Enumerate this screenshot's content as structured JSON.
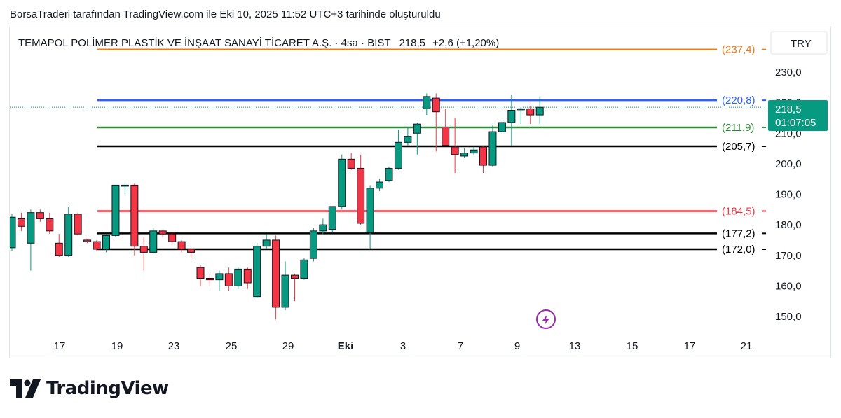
{
  "caption": "BorsaTraderi tarafından TradingView.com ile Eki 10, 2025 11:52 UTC+3 tarihinde oluşturuldu",
  "brand": "TradingView",
  "colors": {
    "up": "#089981",
    "down": "#f23645",
    "price_label_bg": "#089981",
    "lightning": "#9c27b0"
  },
  "chart_data": {
    "type": "candlestick",
    "symbol_line": "TEMAPOL POLİMER PLASTİK VE İNŞAAT SANAYİ TİCARET A.Ş. · 4sa · BIST",
    "last_price": "218,5",
    "change": "+2,6 (+1,20%)",
    "currency": "TRY",
    "countdown": "01:07:05",
    "y_range": [
      146,
      242
    ],
    "y_ticks": [
      "230,0",
      "220,0",
      "210,0",
      "200,0",
      "190,0",
      "180,0",
      "170,0",
      "160,0",
      "150,0"
    ],
    "y_tick_values": [
      230,
      220,
      210,
      200,
      190,
      180,
      170,
      160,
      150
    ],
    "x_labels": [
      "17",
      "19",
      "23",
      "25",
      "29",
      "Eki",
      "3",
      "7",
      "9",
      "13",
      "15",
      "17",
      "21"
    ],
    "levels": [
      {
        "value": 237.4,
        "label": "(237,4)",
        "color": "#ef7b18"
      },
      {
        "value": 220.8,
        "label": "(220,8)",
        "color": "#2962ff"
      },
      {
        "value": 211.9,
        "label": "(211,9)",
        "color": "#2e8b3a"
      },
      {
        "value": 205.7,
        "label": "(205,7)",
        "color": "#000000"
      },
      {
        "value": 184.5,
        "label": "(184,5)",
        "color": "#f23645"
      },
      {
        "value": 177.2,
        "label": "(177,2)",
        "color": "#000000"
      },
      {
        "value": 172.0,
        "label": "(172,0)",
        "color": "#000000"
      }
    ],
    "candles": [
      {
        "o": 172.5,
        "h": 183.5,
        "l": 171.5,
        "c": 182.5
      },
      {
        "o": 182,
        "h": 184,
        "l": 178,
        "c": 179.5
      },
      {
        "o": 174,
        "h": 185,
        "l": 165,
        "c": 184
      },
      {
        "o": 184,
        "h": 185,
        "l": 181,
        "c": 182
      },
      {
        "o": 182,
        "h": 184,
        "l": 177,
        "c": 178
      },
      {
        "o": 174,
        "h": 177,
        "l": 169.5,
        "c": 170
      },
      {
        "o": 170,
        "h": 186,
        "l": 169.5,
        "c": 183.5
      },
      {
        "o": 183.5,
        "h": 184,
        "l": 176.5,
        "c": 177
      },
      {
        "o": 175,
        "h": 175.5,
        "l": 174,
        "c": 174.5
      },
      {
        "o": 174.5,
        "h": 175,
        "l": 171.5,
        "c": 172
      },
      {
        "o": 172,
        "h": 177,
        "l": 171,
        "c": 176.5
      },
      {
        "o": 176.5,
        "h": 193,
        "l": 176,
        "c": 193
      },
      {
        "o": 193,
        "h": 193.5,
        "l": 190,
        "c": 193
      },
      {
        "o": 193,
        "h": 193.5,
        "l": 170,
        "c": 173
      },
      {
        "o": 173,
        "h": 176,
        "l": 165,
        "c": 171
      },
      {
        "o": 171,
        "h": 179,
        "l": 170.5,
        "c": 178
      },
      {
        "o": 178,
        "h": 178.5,
        "l": 176,
        "c": 177
      },
      {
        "o": 177,
        "h": 177.5,
        "l": 173.5,
        "c": 174.5
      },
      {
        "o": 174.5,
        "h": 175,
        "l": 171,
        "c": 172
      },
      {
        "o": 172,
        "h": 172.5,
        "l": 169,
        "c": 171
      },
      {
        "o": 166,
        "h": 167,
        "l": 160,
        "c": 162.5
      },
      {
        "o": 162.5,
        "h": 164,
        "l": 160,
        "c": 162
      },
      {
        "o": 162,
        "h": 165,
        "l": 158.5,
        "c": 164
      },
      {
        "o": 164,
        "h": 166,
        "l": 158.5,
        "c": 160
      },
      {
        "o": 160,
        "h": 166,
        "l": 159,
        "c": 165.5
      },
      {
        "o": 165.5,
        "h": 166,
        "l": 159,
        "c": 161
      },
      {
        "o": 156.5,
        "h": 174,
        "l": 156,
        "c": 173
      },
      {
        "o": 173,
        "h": 177,
        "l": 172,
        "c": 175
      },
      {
        "o": 175,
        "h": 176.5,
        "l": 149,
        "c": 153
      },
      {
        "o": 153,
        "h": 168,
        "l": 152,
        "c": 163.5
      },
      {
        "o": 163.5,
        "h": 164,
        "l": 155,
        "c": 162.5
      },
      {
        "o": 162.5,
        "h": 169,
        "l": 162,
        "c": 168.5
      },
      {
        "o": 169,
        "h": 179,
        "l": 168,
        "c": 178
      },
      {
        "o": 178,
        "h": 182,
        "l": 177,
        "c": 180
      },
      {
        "o": 178.5,
        "h": 186,
        "l": 177.5,
        "c": 186
      },
      {
        "o": 186,
        "h": 203,
        "l": 185,
        "c": 201.5
      },
      {
        "o": 201.5,
        "h": 203.5,
        "l": 198,
        "c": 198.5
      },
      {
        "o": 198.5,
        "h": 203,
        "l": 180,
        "c": 180.5
      },
      {
        "o": 177.5,
        "h": 193,
        "l": 172,
        "c": 192
      },
      {
        "o": 192,
        "h": 195,
        "l": 191,
        "c": 194
      },
      {
        "o": 194.5,
        "h": 199,
        "l": 194,
        "c": 198.5
      },
      {
        "o": 198.5,
        "h": 211,
        "l": 198,
        "c": 207
      },
      {
        "o": 207,
        "h": 212,
        "l": 206,
        "c": 209
      },
      {
        "o": 210,
        "h": 213.5,
        "l": 203,
        "c": 213
      },
      {
        "o": 218,
        "h": 223,
        "l": 216,
        "c": 222
      },
      {
        "o": 221.5,
        "h": 223,
        "l": 204,
        "c": 217
      },
      {
        "o": 212,
        "h": 218,
        "l": 206,
        "c": 206
      },
      {
        "o": 205.5,
        "h": 215,
        "l": 197,
        "c": 203
      },
      {
        "o": 202.5,
        "h": 205,
        "l": 202,
        "c": 203.5
      },
      {
        "o": 203.5,
        "h": 205.5,
        "l": 203,
        "c": 204.5
      },
      {
        "o": 205.5,
        "h": 206,
        "l": 197,
        "c": 199.5
      },
      {
        "o": 199.5,
        "h": 212.5,
        "l": 199,
        "c": 210.5
      },
      {
        "o": 210.5,
        "h": 214,
        "l": 210,
        "c": 213.5
      },
      {
        "o": 213.5,
        "h": 222.5,
        "l": 206,
        "c": 217.5
      },
      {
        "o": 218,
        "h": 218.5,
        "l": 213,
        "c": 218
      },
      {
        "o": 218,
        "h": 219,
        "l": 213,
        "c": 216
      },
      {
        "o": 216,
        "h": 222,
        "l": 213,
        "c": 218.5
      }
    ]
  }
}
